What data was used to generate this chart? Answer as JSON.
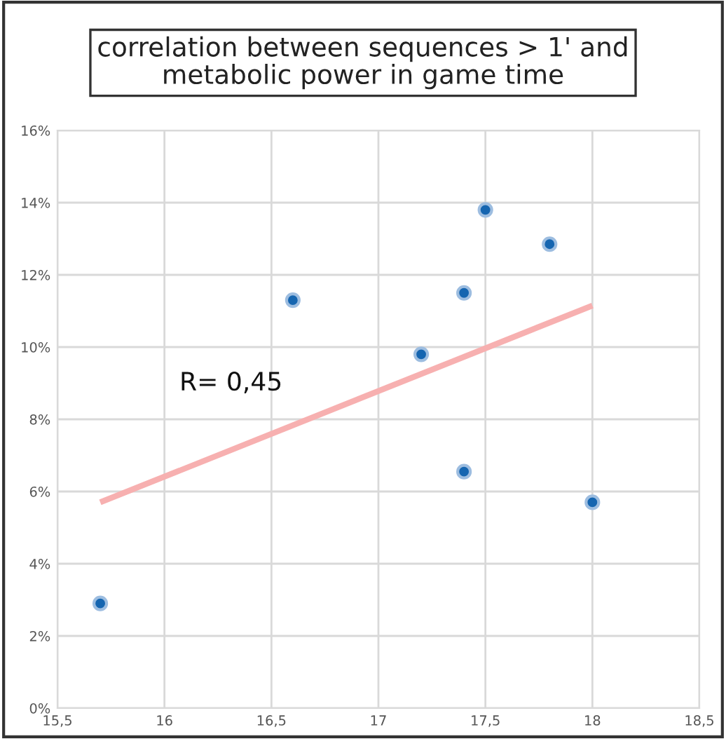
{
  "chart_data": {
    "type": "scatter",
    "title": "correlation between sequences > 1' and\nmetabolic power in game time",
    "series": [
      {
        "marker": "circle",
        "color": "#1565b0",
        "x": [
          15.7,
          16.6,
          17.2,
          17.4,
          17.5,
          17.8,
          17.4,
          18.0
        ],
        "values": [
          2.9,
          11.3,
          9.8,
          11.5,
          13.8,
          12.85,
          6.55,
          5.7
        ]
      },
      {
        "type": "line",
        "color": "#f7b0b0",
        "x": [
          15.7,
          18.0
        ],
        "values": [
          5.7,
          11.15
        ]
      }
    ],
    "annotations": [
      "R= 0,45"
    ],
    "xlim": [
      15.5,
      18.5
    ],
    "xticks": [
      {
        "value": 15.5,
        "label": "15,5"
      },
      16,
      {
        "value": 16.5,
        "label": "16,5"
      },
      17,
      {
        "value": 17.5,
        "label": "17,5"
      },
      18,
      {
        "value": 18.5,
        "label": "18,5"
      }
    ],
    "ylim": [
      0,
      16
    ],
    "yticks": [
      {
        "value": 0,
        "label": "0%"
      },
      {
        "value": 2,
        "label": "2%"
      },
      {
        "value": 4,
        "label": "4%"
      },
      {
        "value": 6,
        "label": "6%"
      },
      {
        "value": 8,
        "label": "8%"
      },
      {
        "value": 10,
        "label": "10%"
      },
      {
        "value": 12,
        "label": "12%"
      },
      {
        "value": 14,
        "label": "14%"
      },
      {
        "value": 16,
        "label": "16%"
      }
    ],
    "grid": true,
    "legend": false
  }
}
